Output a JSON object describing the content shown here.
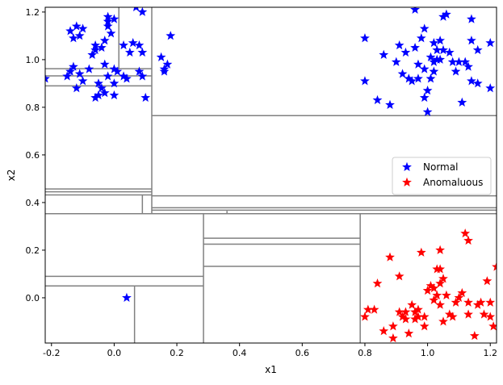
{
  "chart_data": {
    "type": "scatter",
    "title": "",
    "xlabel": "x1",
    "ylabel": "x2",
    "xlim": [
      -0.22,
      1.22
    ],
    "ylim": [
      -0.19,
      1.22
    ],
    "xticks": [
      -0.2,
      0.0,
      0.2,
      0.4,
      0.6,
      0.8,
      1.0,
      1.2
    ],
    "xtick_labels": [
      "-0.2",
      "0.0",
      "0.2",
      "0.4",
      "0.6",
      "0.8",
      "1.0",
      "1.2"
    ],
    "yticks": [
      0.0,
      0.2,
      0.4,
      0.6,
      0.8,
      1.0,
      1.2
    ],
    "ytick_labels": [
      "0.0",
      "0.2",
      "0.4",
      "0.6",
      "0.8",
      "1.0",
      "1.2"
    ],
    "grid": false,
    "legend": {
      "placement": "center-right",
      "entries": [
        {
          "label": "Normal",
          "color": "#0000ff"
        },
        {
          "label": "Anomaluous",
          "color": "#ff0000"
        }
      ]
    },
    "partition_color": "#808080",
    "partition_lines": [
      {
        "orient": "v",
        "at": 0.12,
        "from": 0.353,
        "to": 1.22
      },
      {
        "orient": "h",
        "at": 0.353,
        "from": -0.22,
        "to": 1.22
      },
      {
        "orient": "h",
        "at": 0.765,
        "from": 0.12,
        "to": 1.22
      },
      {
        "orient": "h",
        "at": 0.428,
        "from": 0.12,
        "to": 1.22
      },
      {
        "orient": "h",
        "at": 0.378,
        "from": 0.12,
        "to": 1.22
      },
      {
        "orient": "h",
        "at": 0.368,
        "from": 0.12,
        "to": 1.22
      },
      {
        "orient": "v",
        "at": 0.09,
        "from": 0.353,
        "to": 0.432
      },
      {
        "orient": "h",
        "at": 0.432,
        "from": -0.22,
        "to": 0.12
      },
      {
        "orient": "h",
        "at": 0.457,
        "from": -0.22,
        "to": 0.12
      },
      {
        "orient": "h",
        "at": 0.445,
        "from": -0.22,
        "to": 0.12
      },
      {
        "orient": "h",
        "at": 0.89,
        "from": -0.22,
        "to": 0.12
      },
      {
        "orient": "h",
        "at": 0.962,
        "from": -0.22,
        "to": 0.12
      },
      {
        "orient": "h",
        "at": 0.932,
        "from": -0.22,
        "to": 0.12
      },
      {
        "orient": "v",
        "at": 0.015,
        "from": 0.962,
        "to": 1.22
      },
      {
        "orient": "v",
        "at": 0.36,
        "from": 0.353,
        "to": 0.365
      },
      {
        "orient": "v",
        "at": 0.285,
        "from": -0.19,
        "to": 0.353
      },
      {
        "orient": "v",
        "at": 0.785,
        "from": -0.19,
        "to": 0.353
      },
      {
        "orient": "h",
        "at": 0.25,
        "from": 0.285,
        "to": 0.785
      },
      {
        "orient": "h",
        "at": 0.225,
        "from": 0.285,
        "to": 0.785
      },
      {
        "orient": "h",
        "at": 0.132,
        "from": 0.285,
        "to": 0.785
      },
      {
        "orient": "h",
        "at": 0.09,
        "from": -0.22,
        "to": 0.285
      },
      {
        "orient": "h",
        "at": 0.05,
        "from": -0.22,
        "to": 0.285
      },
      {
        "orient": "v",
        "at": 0.065,
        "from": -0.19,
        "to": 0.05
      }
    ],
    "series": [
      {
        "name": "Normal",
        "color": "#0000ff",
        "marker": "star",
        "points": [
          [
            -0.22,
            0.92
          ],
          [
            -0.14,
            1.12
          ],
          [
            -0.12,
            1.14
          ],
          [
            -0.11,
            1.1
          ],
          [
            -0.1,
            1.13
          ],
          [
            -0.13,
            1.09
          ],
          [
            -0.14,
            0.95
          ],
          [
            -0.15,
            0.93
          ],
          [
            -0.13,
            0.97
          ],
          [
            -0.11,
            0.94
          ],
          [
            -0.1,
            0.91
          ],
          [
            -0.12,
            0.88
          ],
          [
            -0.08,
            0.96
          ],
          [
            -0.06,
            1.04
          ],
          [
            -0.07,
            1.02
          ],
          [
            -0.04,
            1.05
          ],
          [
            -0.06,
            1.06
          ],
          [
            -0.03,
            1.08
          ],
          [
            -0.01,
            1.11
          ],
          [
            -0.02,
            1.14
          ],
          [
            -0.02,
            1.16
          ],
          [
            0.0,
            1.17
          ],
          [
            -0.02,
            1.18
          ],
          [
            -0.05,
            0.9
          ],
          [
            -0.04,
            0.88
          ],
          [
            -0.03,
            0.86
          ],
          [
            -0.05,
            0.85
          ],
          [
            -0.06,
            0.84
          ],
          [
            0.0,
            0.85
          ],
          [
            -0.02,
            0.93
          ],
          [
            0.0,
            0.9
          ],
          [
            -0.03,
            0.98
          ],
          [
            0.0,
            0.96
          ],
          [
            0.01,
            0.95
          ],
          [
            0.03,
            0.93
          ],
          [
            0.04,
            0.92
          ],
          [
            0.03,
            1.06
          ],
          [
            0.05,
            1.03
          ],
          [
            0.06,
            1.07
          ],
          [
            0.08,
            1.06
          ],
          [
            0.07,
            1.22
          ],
          [
            0.09,
            1.2
          ],
          [
            0.09,
            1.03
          ],
          [
            0.08,
            0.95
          ],
          [
            0.09,
            0.93
          ],
          [
            0.1,
            0.84
          ],
          [
            0.15,
            1.01
          ],
          [
            0.16,
            0.95
          ],
          [
            0.17,
            0.98
          ],
          [
            0.18,
            1.1
          ],
          [
            0.16,
            0.96
          ],
          [
            0.8,
            1.09
          ],
          [
            0.8,
            0.91
          ],
          [
            0.84,
            0.83
          ],
          [
            0.86,
            1.02
          ],
          [
            0.88,
            0.81
          ],
          [
            0.9,
            0.99
          ],
          [
            0.91,
            1.06
          ],
          [
            0.92,
            0.94
          ],
          [
            0.93,
            1.03
          ],
          [
            0.94,
            0.92
          ],
          [
            0.95,
            0.91
          ],
          [
            0.96,
            1.21
          ],
          [
            0.96,
            1.05
          ],
          [
            0.97,
            0.92
          ],
          [
            0.98,
            1.09
          ],
          [
            0.99,
            1.13
          ],
          [
            0.99,
            0.96
          ],
          [
            1.0,
            0.87
          ],
          [
            0.99,
            0.84
          ],
          [
            1.0,
            0.78
          ],
          [
            1.01,
            1.01
          ],
          [
            1.02,
            0.99
          ],
          [
            1.02,
            0.95
          ],
          [
            1.01,
            0.92
          ],
          [
            1.03,
            1.04
          ],
          [
            1.04,
            1.08
          ],
          [
            1.04,
            1.0
          ],
          [
            1.05,
            1.04
          ],
          [
            1.05,
            1.18
          ],
          [
            1.06,
            1.19
          ],
          [
            1.07,
            1.03
          ],
          [
            1.08,
            0.99
          ],
          [
            1.09,
            0.95
          ],
          [
            1.1,
            0.99
          ],
          [
            1.11,
            0.82
          ],
          [
            1.12,
            0.99
          ],
          [
            1.13,
            0.97
          ],
          [
            1.14,
            0.91
          ],
          [
            1.14,
            1.08
          ],
          [
            1.14,
            1.17
          ],
          [
            1.16,
            1.04
          ],
          [
            1.16,
            0.9
          ],
          [
            1.2,
            1.07
          ],
          [
            1.2,
            0.88
          ],
          [
            1.02,
            1.07
          ],
          [
            1.03,
            1.0
          ],
          [
            0.97,
            0.98
          ],
          [
            0.04,
            0.0
          ]
        ]
      },
      {
        "name": "Anomaluous",
        "color": "#ff0000",
        "marker": "star",
        "points": [
          [
            0.8,
            -0.08
          ],
          [
            0.81,
            -0.05
          ],
          [
            0.83,
            -0.05
          ],
          [
            0.84,
            0.06
          ],
          [
            0.86,
            -0.14
          ],
          [
            0.88,
            0.17
          ],
          [
            0.89,
            -0.12
          ],
          [
            0.89,
            -0.17
          ],
          [
            0.91,
            0.09
          ],
          [
            0.91,
            -0.06
          ],
          [
            0.92,
            -0.08
          ],
          [
            0.93,
            -0.06
          ],
          [
            0.94,
            -0.15
          ],
          [
            0.95,
            -0.03
          ],
          [
            0.96,
            -0.06
          ],
          [
            0.96,
            -0.09
          ],
          [
            0.97,
            -0.05
          ],
          [
            0.97,
            -0.08
          ],
          [
            0.98,
            0.19
          ],
          [
            0.99,
            -0.08
          ],
          [
            0.99,
            -0.12
          ],
          [
            1.0,
            0.03
          ],
          [
            1.01,
            0.05
          ],
          [
            1.02,
            0.04
          ],
          [
            1.02,
            -0.01
          ],
          [
            1.03,
            0.01
          ],
          [
            1.03,
            0.12
          ],
          [
            1.04,
            0.2
          ],
          [
            1.04,
            0.12
          ],
          [
            1.04,
            0.06
          ],
          [
            1.05,
            0.08
          ],
          [
            1.05,
            -0.1
          ],
          [
            1.06,
            0.01
          ],
          [
            1.07,
            -0.07
          ],
          [
            1.08,
            -0.08
          ],
          [
            1.09,
            -0.02
          ],
          [
            1.1,
            0.0
          ],
          [
            1.11,
            0.02
          ],
          [
            1.12,
            0.27
          ],
          [
            1.13,
            0.24
          ],
          [
            1.13,
            -0.02
          ],
          [
            1.13,
            -0.07
          ],
          [
            1.15,
            -0.16
          ],
          [
            1.16,
            -0.03
          ],
          [
            1.17,
            -0.02
          ],
          [
            1.18,
            -0.07
          ],
          [
            1.19,
            0.07
          ],
          [
            1.2,
            -0.02
          ],
          [
            1.21,
            -0.12
          ],
          [
            1.22,
            0.13
          ],
          [
            1.2,
            -0.08
          ],
          [
            1.04,
            -0.03
          ],
          [
            0.93,
            -0.09
          ]
        ]
      }
    ]
  }
}
